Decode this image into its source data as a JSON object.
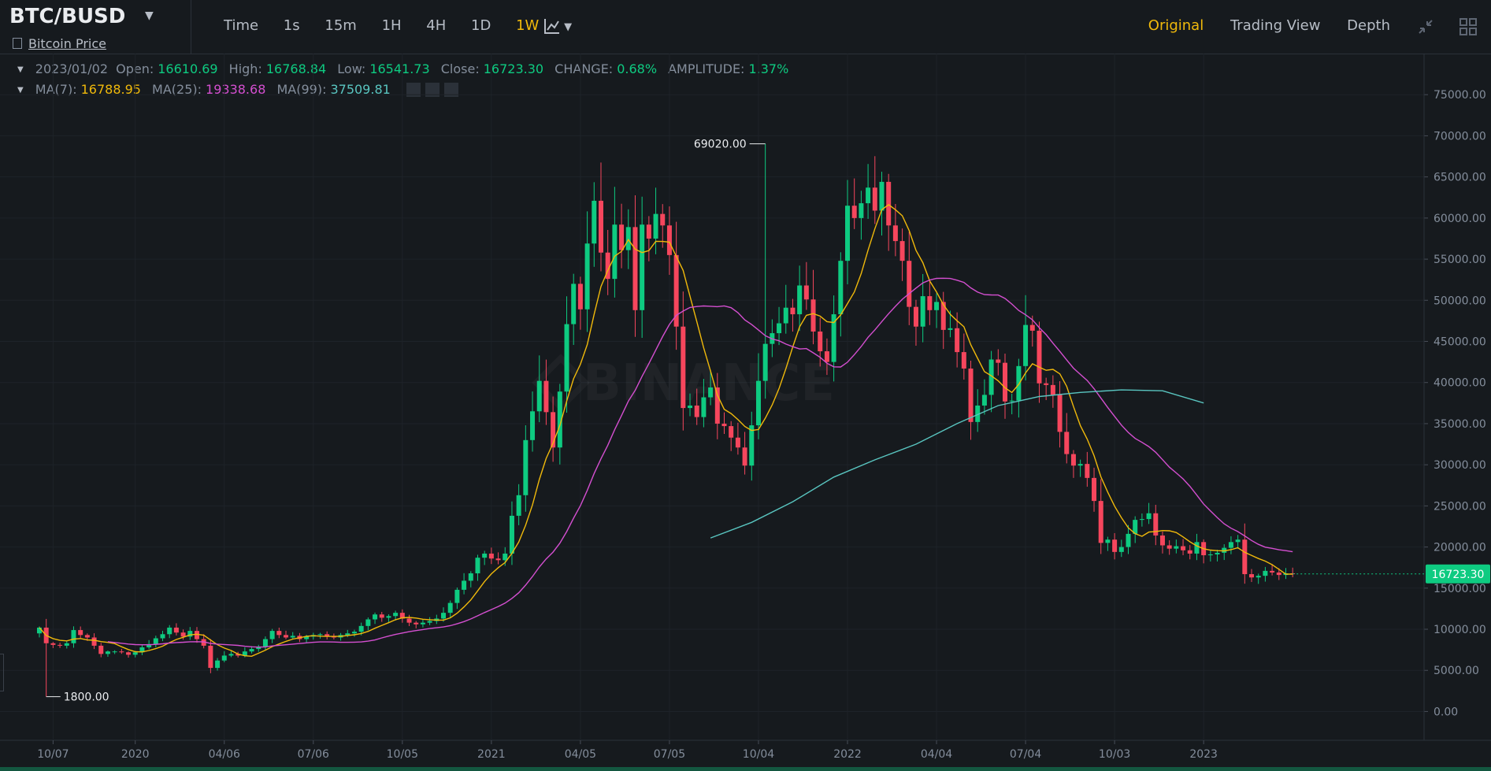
{
  "header": {
    "pair": "BTC/BUSD",
    "subtitle": "Bitcoin Price",
    "intervals": [
      "Time",
      "1s",
      "15m",
      "1H",
      "4H",
      "1D",
      "1W"
    ],
    "active_interval": "1W",
    "views": [
      "Original",
      "Trading View",
      "Depth"
    ],
    "active_view": "Original"
  },
  "ohlc": {
    "date": "2023/01/02",
    "open_label": "Open:",
    "open": "16610.69",
    "high_label": "High:",
    "high": "16768.84",
    "low_label": "Low:",
    "low": "16541.73",
    "close_label": "Close:",
    "close": "16723.30",
    "change_label": "CHANGE:",
    "change": "0.68%",
    "amp_label": "AMPLITUDE:",
    "amp": "1.37%"
  },
  "ma": {
    "ma7_label": "MA(7):",
    "ma7": "16788.95",
    "ma25_label": "MA(25):",
    "ma25": "19338.68",
    "ma99_label": "MA(99):",
    "ma99": "37509.81"
  },
  "watermark": "BINANCE",
  "colors": {
    "up": "#0ecb81",
    "down": "#f6465d",
    "ma7": "#f0b90b",
    "ma25": "#d44fd0",
    "ma99": "#59c5c0",
    "accent": "#f0b90b"
  },
  "chart_data": {
    "type": "candlestick",
    "y_ticks": [
      0,
      5000,
      10000,
      15000,
      20000,
      25000,
      30000,
      35000,
      40000,
      45000,
      50000,
      55000,
      60000,
      65000,
      70000,
      75000
    ],
    "y_tick_labels": [
      "0.00",
      "5000.00",
      "10000.00",
      "15000.00",
      "20000.00",
      "25000.00",
      "30000.00",
      "35000.00",
      "40000.00",
      "45000.00",
      "50000.00",
      "55000.00",
      "60000.00",
      "65000.00",
      "70000.00",
      "75000.00"
    ],
    "ylim": [
      -3500,
      80000
    ],
    "x_ticks": [
      {
        "label": "10/07",
        "i": 2
      },
      {
        "label": "2020",
        "i": 14
      },
      {
        "label": "04/06",
        "i": 27
      },
      {
        "label": "07/06",
        "i": 40
      },
      {
        "label": "10/05",
        "i": 53
      },
      {
        "label": "2021",
        "i": 66
      },
      {
        "label": "04/05",
        "i": 79
      },
      {
        "label": "07/05",
        "i": 92
      },
      {
        "label": "10/04",
        "i": 105
      },
      {
        "label": "2022",
        "i": 118
      },
      {
        "label": "04/04",
        "i": 131
      },
      {
        "label": "07/04",
        "i": 144
      },
      {
        "label": "10/03",
        "i": 157
      },
      {
        "label": "2023",
        "i": 170
      }
    ],
    "max_label": "69020.00",
    "min_label": "1800.00",
    "last_price": "16723.30",
    "last_value": 16723.3,
    "max_value": 69020,
    "max_index": 106,
    "min_value": 1800,
    "min_index": 1,
    "closes": [
      10200,
      8300,
      8100,
      8000,
      8300,
      9900,
      9300,
      9000,
      8000,
      7000,
      7300,
      7300,
      7200,
      6900,
      7200,
      7800,
      8200,
      8900,
      9400,
      10200,
      9600,
      9100,
      9800,
      8800,
      8000,
      5300,
      6200,
      6800,
      7000,
      6800,
      7300,
      7600,
      7900,
      8800,
      9800,
      9300,
      9000,
      9200,
      8800,
      9100,
      9300,
      9400,
      9100,
      9000,
      9300,
      9500,
      9700,
      10400,
      11200,
      11800,
      11400,
      11600,
      12000,
      11300,
      10800,
      10600,
      10800,
      11000,
      11300,
      12000,
      13200,
      14800,
      15900,
      16800,
      18700,
      19200,
      18600,
      18400,
      19200,
      23800,
      26300,
      33000,
      36500,
      40200,
      36400,
      32100,
      38900,
      47100,
      52000,
      48900,
      56900,
      62100,
      55800,
      52600,
      59200,
      56100,
      58900,
      48800,
      59200,
      57500,
      60500,
      59100,
      55500,
      46800,
      36900,
      37200,
      35800,
      38200,
      39400,
      35000,
      34700,
      33300,
      32100,
      29900,
      34800,
      40200,
      44700,
      46000,
      47200,
      49100,
      48300,
      51800,
      50100,
      46200,
      43800,
      42500,
      48300,
      54800,
      61500,
      60000,
      61800,
      63700,
      60900,
      64400,
      59100,
      57200,
      54800,
      49200,
      46800,
      50500,
      48800,
      49800,
      46400,
      46600,
      43700,
      41700,
      35200,
      37200,
      38500,
      42800,
      42400,
      37700,
      37800,
      42000,
      47000,
      46300,
      39900,
      39700,
      38500,
      34000,
      31300,
      29900,
      30100,
      28400,
      25600,
      20500,
      20900,
      19400,
      20000,
      21600,
      23300,
      23400,
      24100,
      21400,
      20200,
      19800,
      20100,
      19600,
      19200,
      20600,
      19000,
      19100,
      19300,
      19900,
      20600,
      20900,
      16700,
      16300,
      16500,
      17100,
      16900,
      16600,
      16800,
      16723.3
    ],
    "ma99_points": [
      {
        "i": 98,
        "v": 21100
      },
      {
        "i": 104,
        "v": 23000
      },
      {
        "i": 110,
        "v": 25500
      },
      {
        "i": 116,
        "v": 28500
      },
      {
        "i": 122,
        "v": 30600
      },
      {
        "i": 128,
        "v": 32500
      },
      {
        "i": 134,
        "v": 35000
      },
      {
        "i": 140,
        "v": 37200
      },
      {
        "i": 146,
        "v": 38300
      },
      {
        "i": 152,
        "v": 38800
      },
      {
        "i": 158,
        "v": 39100
      },
      {
        "i": 164,
        "v": 39000
      },
      {
        "i": 170,
        "v": 37509.81
      }
    ]
  }
}
